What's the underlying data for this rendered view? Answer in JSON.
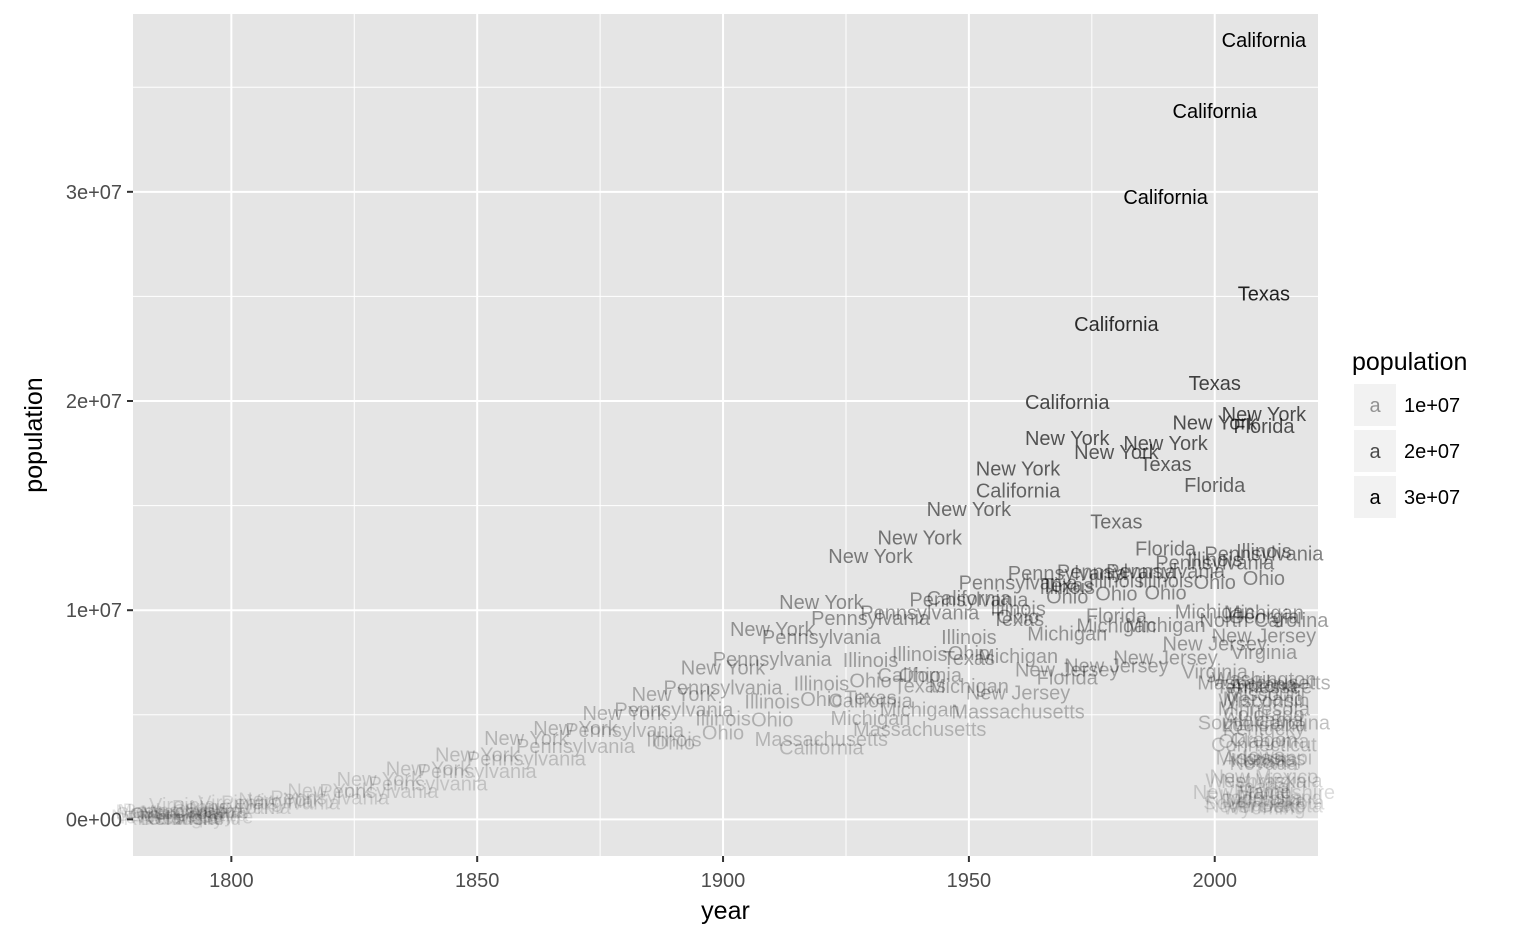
{
  "chart_data": {
    "type": "scatter",
    "geom": "text",
    "xlabel": "year",
    "ylabel": "population",
    "xlim": [
      1780,
      2021
    ],
    "ylim": [
      -1750000,
      38500000
    ],
    "x_ticks": [
      1800,
      1850,
      1900,
      1950,
      2000
    ],
    "x_tick_labels": [
      "1800",
      "1850",
      "1900",
      "1950",
      "2000"
    ],
    "y_ticks": [
      0,
      10000000,
      20000000,
      30000000
    ],
    "y_tick_labels": [
      "0e+00",
      "1e+07",
      "2e+07",
      "3e+07"
    ],
    "grid": true,
    "panel_color": "#e5e5e5",
    "grid_color": "#ffffff",
    "legend": {
      "title": "population",
      "position": "right",
      "aesthetic": "alpha",
      "key_glyph": "a",
      "labels": [
        "1e+07",
        "2e+07",
        "3e+07"
      ],
      "values": [
        10000000,
        20000000,
        30000000
      ]
    },
    "labels": [
      {
        "label": "California",
        "x": 2010,
        "y": 37250000
      },
      {
        "label": "California",
        "x": 2000,
        "y": 33870000
      },
      {
        "label": "California",
        "x": 1990,
        "y": 29760000
      },
      {
        "label": "California",
        "x": 1980,
        "y": 23670000
      },
      {
        "label": "California",
        "x": 1970,
        "y": 19950000
      },
      {
        "label": "California",
        "x": 1960,
        "y": 15720000
      },
      {
        "label": "California",
        "x": 1950,
        "y": 10590000
      },
      {
        "label": "California",
        "x": 1940,
        "y": 6910000
      },
      {
        "label": "California",
        "x": 1930,
        "y": 5680000
      },
      {
        "label": "California",
        "x": 1920,
        "y": 3430000
      },
      {
        "label": "Texas",
        "x": 2010,
        "y": 25150000
      },
      {
        "label": "Texas",
        "x": 2000,
        "y": 20850000
      },
      {
        "label": "Texas",
        "x": 1990,
        "y": 16990000
      },
      {
        "label": "Texas",
        "x": 1980,
        "y": 14230000
      },
      {
        "label": "Texas",
        "x": 1970,
        "y": 11200000
      },
      {
        "label": "Texas",
        "x": 1960,
        "y": 9580000
      },
      {
        "label": "Texas",
        "x": 1950,
        "y": 7710000
      },
      {
        "label": "Texas",
        "x": 1940,
        "y": 6410000
      },
      {
        "label": "Texas",
        "x": 1930,
        "y": 5820000
      },
      {
        "label": "New York",
        "x": 2010,
        "y": 19380000
      },
      {
        "label": "New York",
        "x": 2000,
        "y": 18980000
      },
      {
        "label": "New York",
        "x": 1990,
        "y": 17990000
      },
      {
        "label": "New York",
        "x": 1980,
        "y": 17560000
      },
      {
        "label": "New York",
        "x": 1970,
        "y": 18240000
      },
      {
        "label": "New York",
        "x": 1960,
        "y": 16780000
      },
      {
        "label": "New York",
        "x": 1950,
        "y": 14830000
      },
      {
        "label": "New York",
        "x": 1940,
        "y": 13480000
      },
      {
        "label": "New York",
        "x": 1930,
        "y": 12590000
      },
      {
        "label": "New York",
        "x": 1920,
        "y": 10390000
      },
      {
        "label": "New York",
        "x": 1910,
        "y": 9110000
      },
      {
        "label": "New York",
        "x": 1900,
        "y": 7270000
      },
      {
        "label": "New York",
        "x": 1890,
        "y": 6000000
      },
      {
        "label": "New York",
        "x": 1880,
        "y": 5080000
      },
      {
        "label": "New York",
        "x": 1870,
        "y": 4380000
      },
      {
        "label": "New York",
        "x": 1860,
        "y": 3880000
      },
      {
        "label": "New York",
        "x": 1850,
        "y": 3100000
      },
      {
        "label": "New York",
        "x": 1840,
        "y": 2430000
      },
      {
        "label": "New York",
        "x": 1830,
        "y": 1920000
      },
      {
        "label": "New York",
        "x": 1820,
        "y": 1370000
      },
      {
        "label": "New York",
        "x": 1810,
        "y": 960000
      },
      {
        "label": "Florida",
        "x": 2010,
        "y": 18800000
      },
      {
        "label": "Florida",
        "x": 2000,
        "y": 15980000
      },
      {
        "label": "Florida",
        "x": 1990,
        "y": 12940000
      },
      {
        "label": "Florida",
        "x": 1980,
        "y": 9750000
      },
      {
        "label": "Florida",
        "x": 1970,
        "y": 6790000
      },
      {
        "label": "Pennsylvania",
        "x": 2010,
        "y": 12700000
      },
      {
        "label": "Pennsylvania",
        "x": 2000,
        "y": 12280000
      },
      {
        "label": "Pennsylvania",
        "x": 1990,
        "y": 11880000
      },
      {
        "label": "Pennsylvania",
        "x": 1980,
        "y": 11860000
      },
      {
        "label": "Pennsylvania",
        "x": 1970,
        "y": 11790000
      },
      {
        "label": "Pennsylvania",
        "x": 1960,
        "y": 11320000
      },
      {
        "label": "Pennsylvania",
        "x": 1950,
        "y": 10500000
      },
      {
        "label": "Pennsylvania",
        "x": 1940,
        "y": 9900000
      },
      {
        "label": "Pennsylvania",
        "x": 1930,
        "y": 9630000
      },
      {
        "label": "Pennsylvania",
        "x": 1920,
        "y": 8720000
      },
      {
        "label": "Pennsylvania",
        "x": 1910,
        "y": 7670000
      },
      {
        "label": "Pennsylvania",
        "x": 1900,
        "y": 6300000
      },
      {
        "label": "Pennsylvania",
        "x": 1890,
        "y": 5260000
      },
      {
        "label": "Pennsylvania",
        "x": 1880,
        "y": 4280000
      },
      {
        "label": "Pennsylvania",
        "x": 1870,
        "y": 3520000
      },
      {
        "label": "Pennsylvania",
        "x": 1860,
        "y": 2910000
      },
      {
        "label": "Pennsylvania",
        "x": 1850,
        "y": 2310000
      },
      {
        "label": "Pennsylvania",
        "x": 1840,
        "y": 1720000
      },
      {
        "label": "Pennsylvania",
        "x": 1830,
        "y": 1350000
      },
      {
        "label": "Illinois",
        "x": 2010,
        "y": 12830000
      },
      {
        "label": "Illinois",
        "x": 2000,
        "y": 12420000
      },
      {
        "label": "Illinois",
        "x": 1990,
        "y": 11430000
      },
      {
        "label": "Illinois",
        "x": 1980,
        "y": 11430000
      },
      {
        "label": "Illinois",
        "x": 1970,
        "y": 11110000
      },
      {
        "label": "Illinois",
        "x": 1960,
        "y": 10080000
      },
      {
        "label": "Illinois",
        "x": 1950,
        "y": 8710000
      },
      {
        "label": "Illinois",
        "x": 1940,
        "y": 7900000
      },
      {
        "label": "Illinois",
        "x": 1930,
        "y": 7630000
      },
      {
        "label": "Illinois",
        "x": 1920,
        "y": 6490000
      },
      {
        "label": "Illinois",
        "x": 1910,
        "y": 5640000
      },
      {
        "label": "Illinois",
        "x": 1900,
        "y": 4820000
      },
      {
        "label": "Illinois",
        "x": 1890,
        "y": 3830000
      },
      {
        "label": "Ohio",
        "x": 2010,
        "y": 11540000
      },
      {
        "label": "Ohio",
        "x": 2000,
        "y": 11350000
      },
      {
        "label": "Ohio",
        "x": 1990,
        "y": 10850000
      },
      {
        "label": "Ohio",
        "x": 1980,
        "y": 10800000
      },
      {
        "label": "Ohio",
        "x": 1970,
        "y": 10650000
      },
      {
        "label": "Ohio",
        "x": 1960,
        "y": 9710000
      },
      {
        "label": "Ohio",
        "x": 1950,
        "y": 7950000
      },
      {
        "label": "Ohio",
        "x": 1940,
        "y": 6910000
      },
      {
        "label": "Ohio",
        "x": 1930,
        "y": 6650000
      },
      {
        "label": "Ohio",
        "x": 1920,
        "y": 5760000
      },
      {
        "label": "Ohio",
        "x": 1910,
        "y": 4770000
      },
      {
        "label": "Ohio",
        "x": 1900,
        "y": 4160000
      },
      {
        "label": "Ohio",
        "x": 1890,
        "y": 3670000
      },
      {
        "label": "Michigan",
        "x": 2010,
        "y": 9880000
      },
      {
        "label": "Michigan",
        "x": 2000,
        "y": 9940000
      },
      {
        "label": "Michigan",
        "x": 1990,
        "y": 9300000
      },
      {
        "label": "Michigan",
        "x": 1980,
        "y": 9260000
      },
      {
        "label": "Michigan",
        "x": 1970,
        "y": 8880000
      },
      {
        "label": "Michigan",
        "x": 1960,
        "y": 7820000
      },
      {
        "label": "Michigan",
        "x": 1950,
        "y": 6370000
      },
      {
        "label": "Michigan",
        "x": 1940,
        "y": 5260000
      },
      {
        "label": "Michigan",
        "x": 1930,
        "y": 4840000
      },
      {
        "label": "Georgia",
        "x": 2010,
        "y": 9690000
      },
      {
        "label": "North Carolina",
        "x": 2010,
        "y": 9540000
      },
      {
        "label": "New Jersey",
        "x": 2010,
        "y": 8790000
      },
      {
        "label": "New Jersey",
        "x": 2000,
        "y": 8410000
      },
      {
        "label": "New Jersey",
        "x": 1990,
        "y": 7730000
      },
      {
        "label": "New Jersey",
        "x": 1980,
        "y": 7360000
      },
      {
        "label": "New Jersey",
        "x": 1970,
        "y": 7170000
      },
      {
        "label": "New Jersey",
        "x": 1960,
        "y": 6070000
      },
      {
        "label": "Virginia",
        "x": 2010,
        "y": 8000000
      },
      {
        "label": "Virginia",
        "x": 2000,
        "y": 7080000
      },
      {
        "label": "Washington",
        "x": 2010,
        "y": 6720000
      },
      {
        "label": "Massachusetts",
        "x": 2010,
        "y": 6550000
      },
      {
        "label": "Massachusetts",
        "x": 1960,
        "y": 5150000
      },
      {
        "label": "Massachusetts",
        "x": 1940,
        "y": 4320000
      },
      {
        "label": "Massachusetts",
        "x": 1920,
        "y": 3850000
      },
      {
        "label": "Arizona",
        "x": 2010,
        "y": 6390000
      },
      {
        "label": "Indiana",
        "x": 2010,
        "y": 6480000
      },
      {
        "label": "Tennessee",
        "x": 2010,
        "y": 6350000
      },
      {
        "label": "Missouri",
        "x": 2010,
        "y": 5990000
      },
      {
        "label": "Maryland",
        "x": 2010,
        "y": 5770000
      },
      {
        "label": "Wisconsin",
        "x": 2010,
        "y": 5690000
      },
      {
        "label": "Minnesota",
        "x": 2010,
        "y": 5300000
      },
      {
        "label": "Colorado",
        "x": 2010,
        "y": 5030000
      },
      {
        "label": "Alabama",
        "x": 2010,
        "y": 4780000
      },
      {
        "label": "South Carolina",
        "x": 2010,
        "y": 4630000
      },
      {
        "label": "Louisiana",
        "x": 2010,
        "y": 4530000
      },
      {
        "label": "Kentucky",
        "x": 2010,
        "y": 4340000
      },
      {
        "label": "Oregon",
        "x": 2010,
        "y": 3830000
      },
      {
        "label": "Oklahoma",
        "x": 2010,
        "y": 3750000
      },
      {
        "label": "Connecticut",
        "x": 2010,
        "y": 3570000
      },
      {
        "label": "Iowa",
        "x": 2010,
        "y": 3050000
      },
      {
        "label": "Mississippi",
        "x": 2010,
        "y": 2970000
      },
      {
        "label": "Arkansas",
        "x": 2010,
        "y": 2920000
      },
      {
        "label": "Kansas",
        "x": 2010,
        "y": 2850000
      },
      {
        "label": "Utah",
        "x": 2010,
        "y": 2760000
      },
      {
        "label": "Nevada",
        "x": 2010,
        "y": 2700000
      },
      {
        "label": "New Mexico",
        "x": 2010,
        "y": 2060000
      },
      {
        "label": "West Virginia",
        "x": 2010,
        "y": 1850000
      },
      {
        "label": "Nebraska",
        "x": 2010,
        "y": 1830000
      },
      {
        "label": "Idaho",
        "x": 2010,
        "y": 1570000
      },
      {
        "label": "Hawaii",
        "x": 2010,
        "y": 1360000
      },
      {
        "label": "Maine",
        "x": 2010,
        "y": 1330000
      },
      {
        "label": "New Hampshire",
        "x": 2010,
        "y": 1320000
      },
      {
        "label": "Rhode Island",
        "x": 2010,
        "y": 1050000
      },
      {
        "label": "Montana",
        "x": 2010,
        "y": 990000
      },
      {
        "label": "Delaware",
        "x": 2010,
        "y": 900000
      },
      {
        "label": "South Dakota",
        "x": 2010,
        "y": 810000
      },
      {
        "label": "Alaska",
        "x": 2010,
        "y": 710000
      },
      {
        "label": "North Dakota",
        "x": 2010,
        "y": 670000
      },
      {
        "label": "Vermont",
        "x": 2010,
        "y": 630000
      },
      {
        "label": "Wyoming",
        "x": 2010,
        "y": 560000
      },
      {
        "label": "Virginia",
        "x": 1790,
        "y": 690000
      },
      {
        "label": "Virginia",
        "x": 1800,
        "y": 800000
      },
      {
        "label": "Virginia",
        "x": 1810,
        "y": 880000
      },
      {
        "label": "Pennsylvania",
        "x": 1790,
        "y": 430000
      },
      {
        "label": "Pennsylvania",
        "x": 1800,
        "y": 600000
      },
      {
        "label": "Pennsylvania",
        "x": 1810,
        "y": 810000
      },
      {
        "label": "Pennsylvania",
        "x": 1820,
        "y": 1050000
      },
      {
        "label": "New York",
        "x": 1790,
        "y": 340000
      },
      {
        "label": "New York",
        "x": 1800,
        "y": 590000
      },
      {
        "label": "Massachusetts",
        "x": 1790,
        "y": 380000
      },
      {
        "label": "North Carolina",
        "x": 1790,
        "y": 390000
      },
      {
        "label": "Maryland",
        "x": 1790,
        "y": 320000
      },
      {
        "label": "South Carolina",
        "x": 1790,
        "y": 250000
      },
      {
        "label": "Connecticut",
        "x": 1790,
        "y": 240000
      },
      {
        "label": "New Jersey",
        "x": 1790,
        "y": 180000
      },
      {
        "label": "New Hampshire",
        "x": 1790,
        "y": 140000
      },
      {
        "label": "Georgia",
        "x": 1790,
        "y": 83000
      },
      {
        "label": "Kentucky",
        "x": 1790,
        "y": 74000
      },
      {
        "label": "Rhode Island",
        "x": 1790,
        "y": 69000
      },
      {
        "label": "Delaware",
        "x": 1790,
        "y": 59000
      },
      {
        "label": "Vermont",
        "x": 1790,
        "y": 85000
      }
    ]
  }
}
